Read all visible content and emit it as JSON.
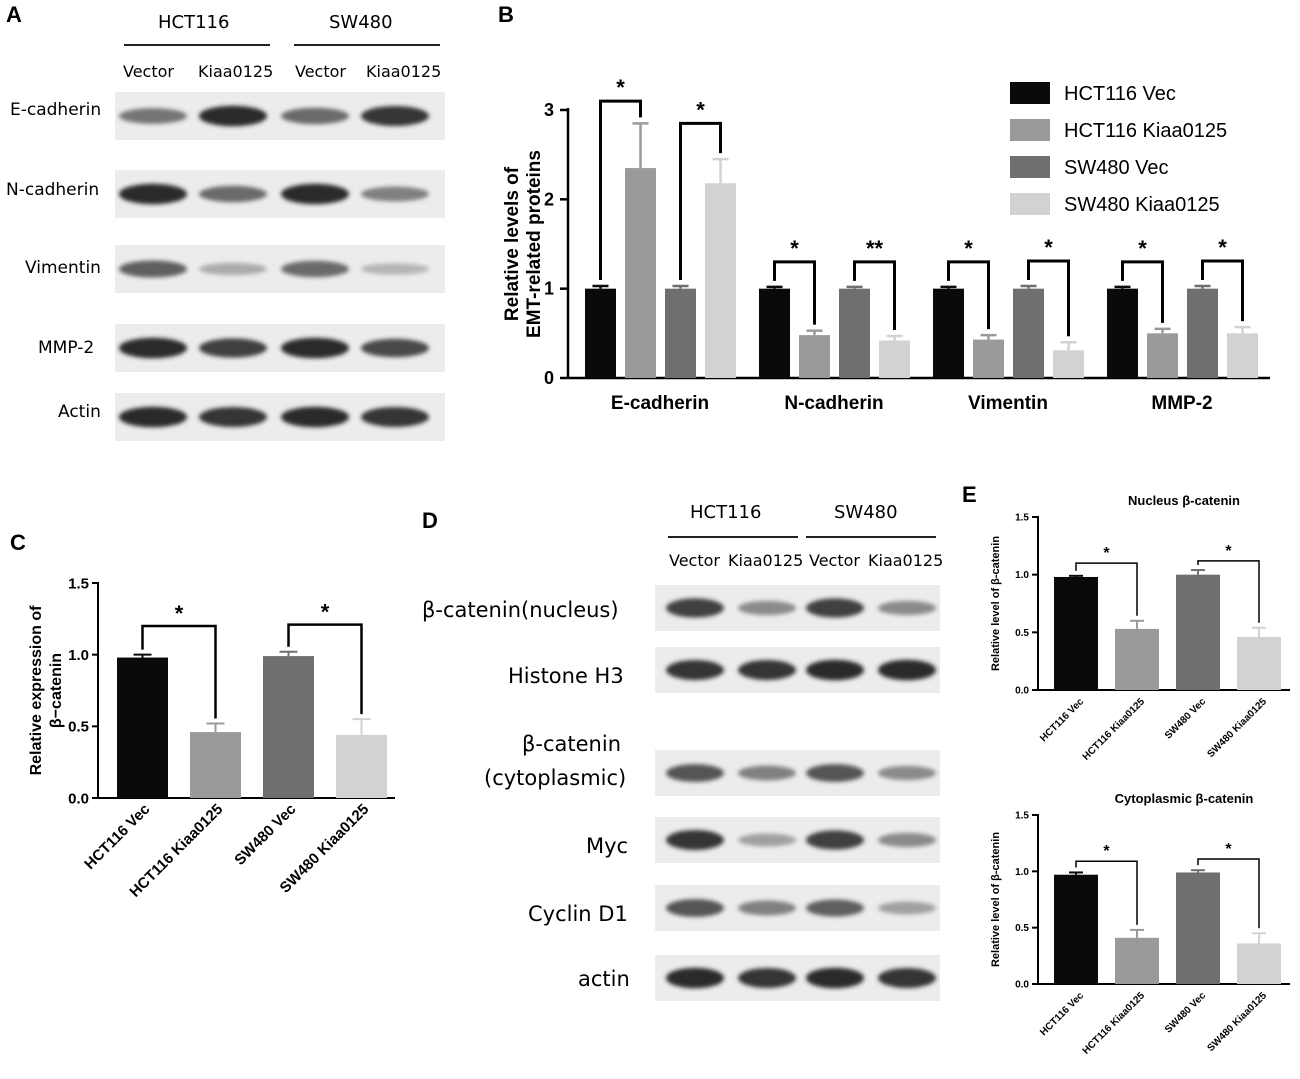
{
  "colors": {
    "hct116_vec": "#0a0a0a",
    "hct116_kiaa": "#9a9a9a",
    "sw480_vec": "#6f6f6f",
    "sw480_kiaa": "#d2d2d2"
  },
  "panel_a": {
    "letter": "A",
    "groups": [
      "HCT116",
      "SW480"
    ],
    "lanes": [
      "Vector",
      "Kiaa0125",
      "Vector",
      "Kiaa0125"
    ],
    "rows": [
      "E-cadherin",
      "N-cadherin",
      "Vimentin",
      "MMP-2",
      "Actin"
    ],
    "band_intensity": [
      [
        0.55,
        0.9,
        0.6,
        0.85
      ],
      [
        0.9,
        0.6,
        0.9,
        0.5
      ],
      [
        0.65,
        0.3,
        0.6,
        0.25
      ],
      [
        0.9,
        0.8,
        0.9,
        0.75
      ],
      [
        0.9,
        0.85,
        0.9,
        0.85
      ]
    ]
  },
  "panel_d": {
    "letter": "D",
    "groups": [
      "HCT116",
      "SW480"
    ],
    "lanes": [
      "Vector",
      "Kiaa0125",
      "Vector",
      "Kiaa0125"
    ],
    "rows": [
      "β-catenin(nucleus)",
      "Histone H3",
      "β-catenin",
      "(cytoplasmic)",
      "Myc",
      "Cyclin D1",
      "actin"
    ],
    "band_intensity": [
      [
        0.8,
        0.45,
        0.8,
        0.45
      ],
      [
        0.85,
        0.85,
        0.9,
        0.9
      ],
      [
        0.7,
        0.5,
        0.7,
        0.45
      ],
      [
        0.85,
        0.35,
        0.8,
        0.45
      ],
      [
        0.7,
        0.5,
        0.65,
        0.35
      ],
      [
        0.9,
        0.85,
        0.9,
        0.85
      ]
    ]
  },
  "chart_data": [
    {
      "panel": "B",
      "type": "bar",
      "title": "",
      "xlabel": "",
      "ylabel": "Relative levels of EMT-related proteins",
      "ylim": [
        0,
        3
      ],
      "yticks": [
        "0",
        "1",
        "2",
        "3"
      ],
      "categories": [
        "E-cadherin",
        "N-cadherin",
        "Vimentin",
        "MMP-2"
      ],
      "series": [
        {
          "name": "HCT116 Vec",
          "values": [
            1.0,
            1.0,
            1.0,
            1.0
          ],
          "errors": [
            0.03,
            0.02,
            0.02,
            0.02
          ]
        },
        {
          "name": "HCT116 Kiaa0125",
          "values": [
            2.35,
            0.48,
            0.43,
            0.5
          ],
          "errors": [
            0.5,
            0.05,
            0.05,
            0.05
          ]
        },
        {
          "name": "SW480 Vec",
          "values": [
            1.0,
            1.0,
            1.0,
            1.0
          ],
          "errors": [
            0.03,
            0.02,
            0.03,
            0.03
          ]
        },
        {
          "name": "SW480 Kiaa0125",
          "values": [
            2.18,
            0.42,
            0.31,
            0.5
          ],
          "errors": [
            0.27,
            0.05,
            0.09,
            0.07
          ]
        }
      ],
      "significance": [
        {
          "category": 0,
          "pair": "HCT116",
          "label": "*"
        },
        {
          "category": 0,
          "pair": "SW480",
          "label": "*"
        },
        {
          "category": 1,
          "pair": "HCT116",
          "label": "*"
        },
        {
          "category": 1,
          "pair": "SW480",
          "label": "**"
        },
        {
          "category": 2,
          "pair": "HCT116",
          "label": "*"
        },
        {
          "category": 2,
          "pair": "SW480",
          "label": "*"
        },
        {
          "category": 3,
          "pair": "HCT116",
          "label": "*"
        },
        {
          "category": 3,
          "pair": "SW480",
          "label": "*"
        }
      ],
      "legend": {
        "position": "top-right",
        "entries": [
          "HCT116 Vec",
          "HCT116 Kiaa0125",
          "SW480 Vec",
          "SW480 Kiaa0125"
        ]
      },
      "grid": false
    },
    {
      "panel": "C",
      "type": "bar",
      "title": "",
      "xlabel": "",
      "ylabel": "Relative expression of β−catenin",
      "ylim": [
        0,
        1.5
      ],
      "yticks": [
        "0.0",
        "0.5",
        "1.0",
        "1.5"
      ],
      "categories": [
        "HCT116 Vec",
        "HCT116 Kiaa0125",
        "SW480 Vec",
        "SW480 Kiaa0125"
      ],
      "values": [
        0.98,
        0.46,
        0.99,
        0.44
      ],
      "errors": [
        0.02,
        0.06,
        0.03,
        0.11
      ],
      "significance": [
        {
          "from": 0,
          "to": 1,
          "label": "*"
        },
        {
          "from": 2,
          "to": 3,
          "label": "*"
        }
      ],
      "grid": false
    },
    {
      "panel": "E",
      "type": "bar",
      "title": "Nucleus β-catenin",
      "xlabel": "",
      "ylabel": "Relative level of β-catenin",
      "ylim": [
        0,
        1.5
      ],
      "yticks": [
        "0.0",
        "0.5",
        "1.0",
        "1.5"
      ],
      "categories": [
        "HCT116 Vec",
        "HCT116 Kiaa0125",
        "SW480 Vec",
        "SW480 Kiaa0125"
      ],
      "values": [
        0.98,
        0.53,
        1.0,
        0.46
      ],
      "errors": [
        0.01,
        0.07,
        0.04,
        0.08
      ],
      "significance": [
        {
          "from": 0,
          "to": 1,
          "label": "*"
        },
        {
          "from": 2,
          "to": 3,
          "label": "*"
        }
      ],
      "grid": false
    },
    {
      "panel": "E",
      "type": "bar",
      "title": "Cytoplasmic β-catenin",
      "xlabel": "",
      "ylabel": "Relative level of β-catenin",
      "ylim": [
        0,
        1.5
      ],
      "yticks": [
        "0.0",
        "0.5",
        "1.0",
        "1.5"
      ],
      "categories": [
        "HCT116 Vec",
        "HCT116 Kiaa0125",
        "SW480 Vec",
        "SW480 Kiaa0125"
      ],
      "values": [
        0.97,
        0.41,
        0.99,
        0.36
      ],
      "errors": [
        0.02,
        0.07,
        0.02,
        0.09
      ],
      "significance": [
        {
          "from": 0,
          "to": 1,
          "label": "*"
        },
        {
          "from": 2,
          "to": 3,
          "label": "*"
        }
      ],
      "grid": false
    }
  ],
  "panel_letters": {
    "b": "B",
    "c": "C",
    "e": "E"
  }
}
